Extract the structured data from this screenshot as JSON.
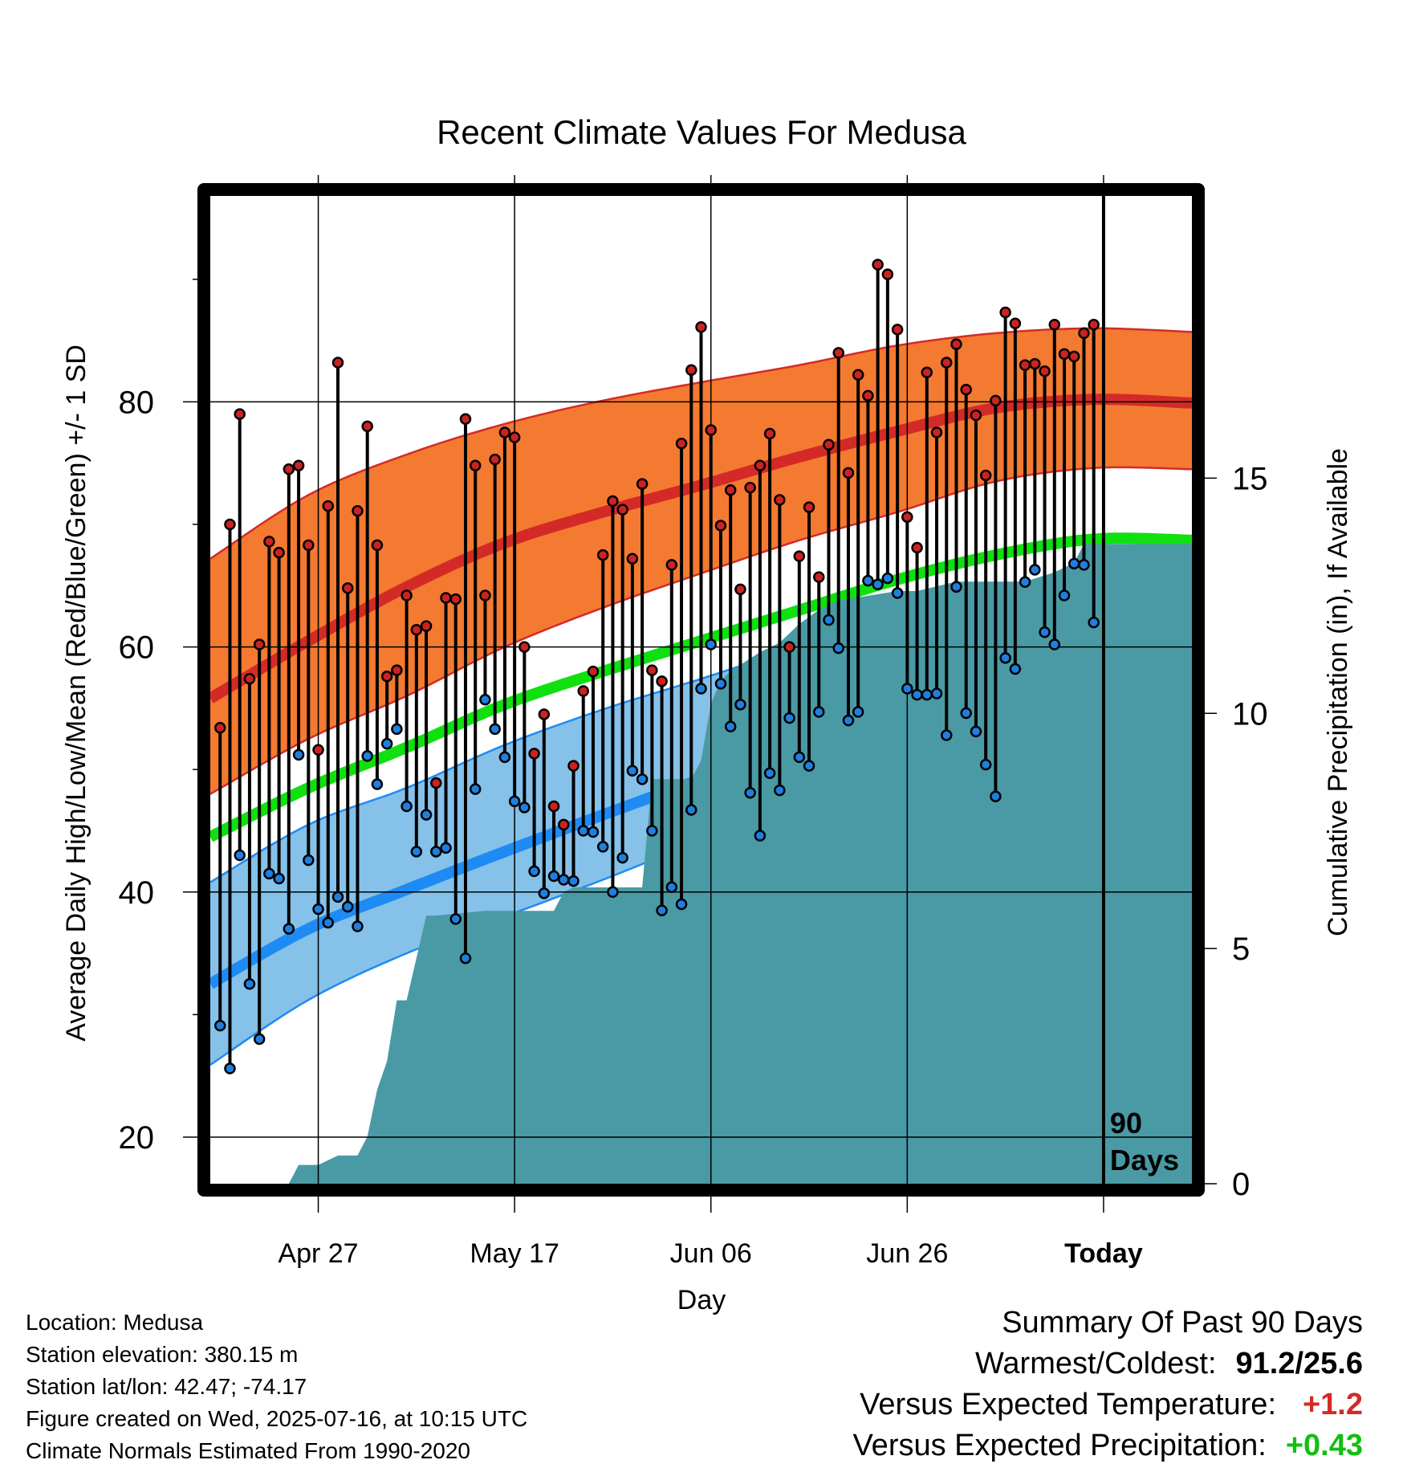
{
  "chart_data": {
    "type": "line",
    "title": "Recent Climate Values For Medusa",
    "xlabel": "Day",
    "ylabel": "Average Daily High/Low/Mean (Red/Blue/Green) +/- 1 SD",
    "y2label": "Cumulative Precipitation (in), If Available",
    "ylim": [
      16.2,
      96.8
    ],
    "y2lim": [
      0,
      21
    ],
    "yticks": [
      20,
      40,
      60,
      80
    ],
    "y2ticks": [
      0,
      5,
      10,
      15
    ],
    "y2tick_labels": [
      "0",
      "5",
      "10",
      "15"
    ],
    "xlim": [
      "2025-04-16",
      "2025-07-25"
    ],
    "xtick_dates": [
      "2025-04-27",
      "2025-05-17",
      "2025-06-06",
      "2025-06-26",
      "2025-07-16"
    ],
    "xtick_labels": [
      "Apr 27",
      "May 17",
      "Jun 06",
      "Jun 26",
      "Today"
    ],
    "today": "2025-07-16",
    "window_label": "90\nDays",
    "grid": true,
    "colors": {
      "high_band": "#f37a30",
      "high_mean": "#d42a27",
      "low_band": "#85c1e9",
      "low_mean": "#1e8bf5",
      "mean": "#10e010",
      "precip": "#4a9aa5",
      "high_dot": "#cc2222",
      "low_dot": "#1f7fe0"
    },
    "normals": {
      "dates": [
        "2025-04-16",
        "2025-04-26",
        "2025-05-06",
        "2025-05-16",
        "2025-05-26",
        "2025-06-05",
        "2025-06-15",
        "2025-06-25",
        "2025-07-05",
        "2025-07-15",
        "2025-07-25"
      ],
      "high_mean": [
        55.8,
        60.5,
        64.9,
        68.5,
        71.0,
        73.2,
        75.5,
        77.6,
        79.5,
        80.2,
        79.9
      ],
      "high_upper": [
        67.2,
        72.4,
        75.7,
        78.2,
        80.1,
        81.6,
        83.0,
        84.6,
        85.6,
        86.0,
        85.7
      ],
      "high_lower": [
        48.0,
        52.5,
        56.0,
        60.0,
        63.2,
        66.0,
        68.7,
        71.0,
        73.5,
        74.6,
        74.5
      ],
      "mean": [
        44.5,
        48.5,
        51.8,
        55.3,
        58.0,
        60.5,
        63.0,
        65.5,
        67.5,
        68.8,
        68.7
      ],
      "low_mean": [
        32.5,
        37.0,
        40.2,
        43.3,
        46.3,
        49.2,
        52.0,
        54.6,
        56.5,
        57.4,
        57.3
      ],
      "low_upper": [
        40.8,
        45.5,
        48.5,
        52.0,
        54.9,
        57.4,
        60.0,
        62.2,
        63.2,
        63.4,
        63.3
      ],
      "low_lower": [
        25.9,
        31.2,
        35.0,
        38.0,
        41.0,
        44.2,
        47.0,
        49.8,
        51.5,
        52.0,
        52.0
      ]
    },
    "daily": {
      "start": "2025-04-17",
      "highs": [
        53.4,
        70.0,
        79.0,
        57.4,
        60.2,
        68.6,
        67.7,
        74.5,
        74.8,
        68.3,
        51.6,
        71.5,
        83.2,
        64.8,
        71.1,
        78.0,
        68.3,
        57.6,
        58.1,
        64.2,
        61.4,
        61.7,
        48.9,
        64.0,
        63.9,
        78.6,
        74.8,
        64.2,
        75.3,
        77.5,
        77.1,
        60.0,
        51.3,
        54.5,
        47.0,
        45.5,
        50.3,
        56.4,
        58.0,
        67.5,
        71.9,
        71.2,
        67.2,
        73.3,
        58.1,
        57.2,
        66.7,
        76.6,
        82.6,
        86.1,
        77.7,
        69.9,
        72.8,
        64.7,
        73.0,
        74.8,
        77.4,
        72.0,
        60.0,
        67.4,
        71.4,
        65.7,
        76.5,
        84.0,
        74.2,
        82.2,
        80.5,
        91.2,
        90.4,
        85.9,
        70.6,
        68.1,
        82.4,
        77.5,
        83.2,
        84.7,
        81.0,
        78.9,
        74.0,
        80.1,
        87.3,
        86.4,
        83.0,
        83.1,
        82.5,
        86.3,
        83.9,
        83.7,
        85.6,
        86.3
      ],
      "lows": [
        29.1,
        25.6,
        43.0,
        32.5,
        28.0,
        41.5,
        41.1,
        37.0,
        51.2,
        42.6,
        38.6,
        37.5,
        39.6,
        38.8,
        37.2,
        51.1,
        48.8,
        52.1,
        53.3,
        47.0,
        43.3,
        46.3,
        43.3,
        43.6,
        37.8,
        34.6,
        48.4,
        55.7,
        53.3,
        51.0,
        47.4,
        46.9,
        41.7,
        39.9,
        41.3,
        41.0,
        40.9,
        45.0,
        44.9,
        43.7,
        40.0,
        42.8,
        49.9,
        49.2,
        45.0,
        38.5,
        40.4,
        39.0,
        46.7,
        56.6,
        60.2,
        57.0,
        53.5,
        55.3,
        48.1,
        44.6,
        49.7,
        48.3,
        54.2,
        51.0,
        50.3,
        54.7,
        62.2,
        59.9,
        54.0,
        54.7,
        65.4,
        65.1,
        65.6,
        64.4,
        56.6,
        56.1,
        56.1,
        56.2,
        52.8,
        64.9,
        54.6,
        53.1,
        50.4,
        47.8,
        59.1,
        58.2,
        65.3,
        66.3,
        61.2,
        60.2,
        64.2,
        66.8,
        66.7,
        62.0
      ]
    },
    "precip": {
      "dates": [
        "2025-04-16",
        "2025-04-24",
        "2025-04-25",
        "2025-04-27",
        "2025-04-29",
        "2025-05-01",
        "2025-05-02",
        "2025-05-03",
        "2025-05-04",
        "2025-05-05",
        "2025-05-06",
        "2025-05-08",
        "2025-05-09",
        "2025-05-14",
        "2025-05-21",
        "2025-05-22",
        "2025-05-23",
        "2025-05-30",
        "2025-05-31",
        "2025-06-04",
        "2025-06-05",
        "2025-06-06",
        "2025-06-07",
        "2025-06-08",
        "2025-06-11",
        "2025-06-13",
        "2025-06-15",
        "2025-06-17",
        "2025-06-19",
        "2025-06-25",
        "2025-06-27",
        "2025-07-01",
        "2025-07-08",
        "2025-07-11",
        "2025-07-13",
        "2025-07-14",
        "2025-07-25"
      ],
      "values": [
        0,
        0,
        0.4,
        0.4,
        0.6,
        0.6,
        1.0,
        2.0,
        2.6,
        3.9,
        3.9,
        5.7,
        5.7,
        5.8,
        5.8,
        6.2,
        6.3,
        6.3,
        8.6,
        8.6,
        9.0,
        10.2,
        10.7,
        10.9,
        11.3,
        11.5,
        11.9,
        12.2,
        12.4,
        12.6,
        12.6,
        12.8,
        12.8,
        13.0,
        13.2,
        13.6,
        13.6
      ]
    }
  },
  "info": {
    "location": "Location: Medusa",
    "elevation": "Station elevation: 380.15 m",
    "latlon": "Station lat/lon: 42.47; -74.17",
    "created": "Figure created on Wed, 2025-07-16, at 10:15 UTC",
    "normals": "Climate Normals Estimated From 1990-2020"
  },
  "summary": {
    "heading": "Summary Of Past 90 Days",
    "warmest_label": "Warmest/Coldest:",
    "warmest_value": "91.2/25.6",
    "temp_label": "Versus Expected Temperature:",
    "temp_value": "+1.2",
    "temp_color": "#d42a27",
    "precip_label": "Versus Expected Precipitation:",
    "precip_value": "+0.43",
    "precip_color": "#10c010"
  }
}
